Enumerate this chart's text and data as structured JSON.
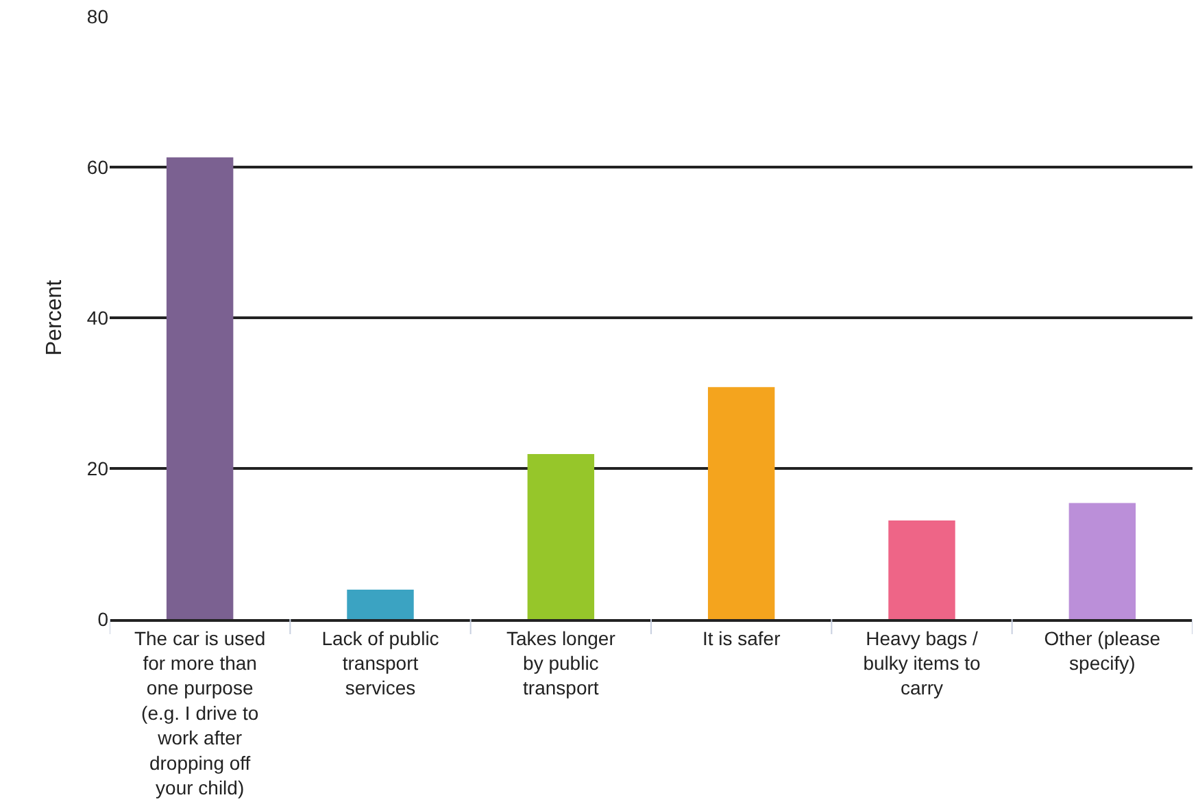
{
  "chart_data": {
    "type": "bar",
    "ylabel": "Percent",
    "categories": [
      "The car is used\nfor more than\none purpose\n(e.g. I drive to\nwork after\ndropping off\nyour child)",
      "Lack of public\ntransport\nservices",
      "Takes longer\nby public\ntransport",
      "It is safer",
      "Heavy bags /\nbulky items to\ncarry",
      "Other (please\nspecify)"
    ],
    "values": [
      61.3,
      3.9,
      21.9,
      30.8,
      13.1,
      15.4
    ],
    "colors": [
      "#7b6191",
      "#3ba3c2",
      "#96c62a",
      "#f4a41e",
      "#ee6587",
      "#bb8fd9"
    ],
    "ylim": [
      0,
      80
    ],
    "yticks": [
      0,
      20,
      40,
      60,
      80
    ],
    "grid": "y"
  }
}
